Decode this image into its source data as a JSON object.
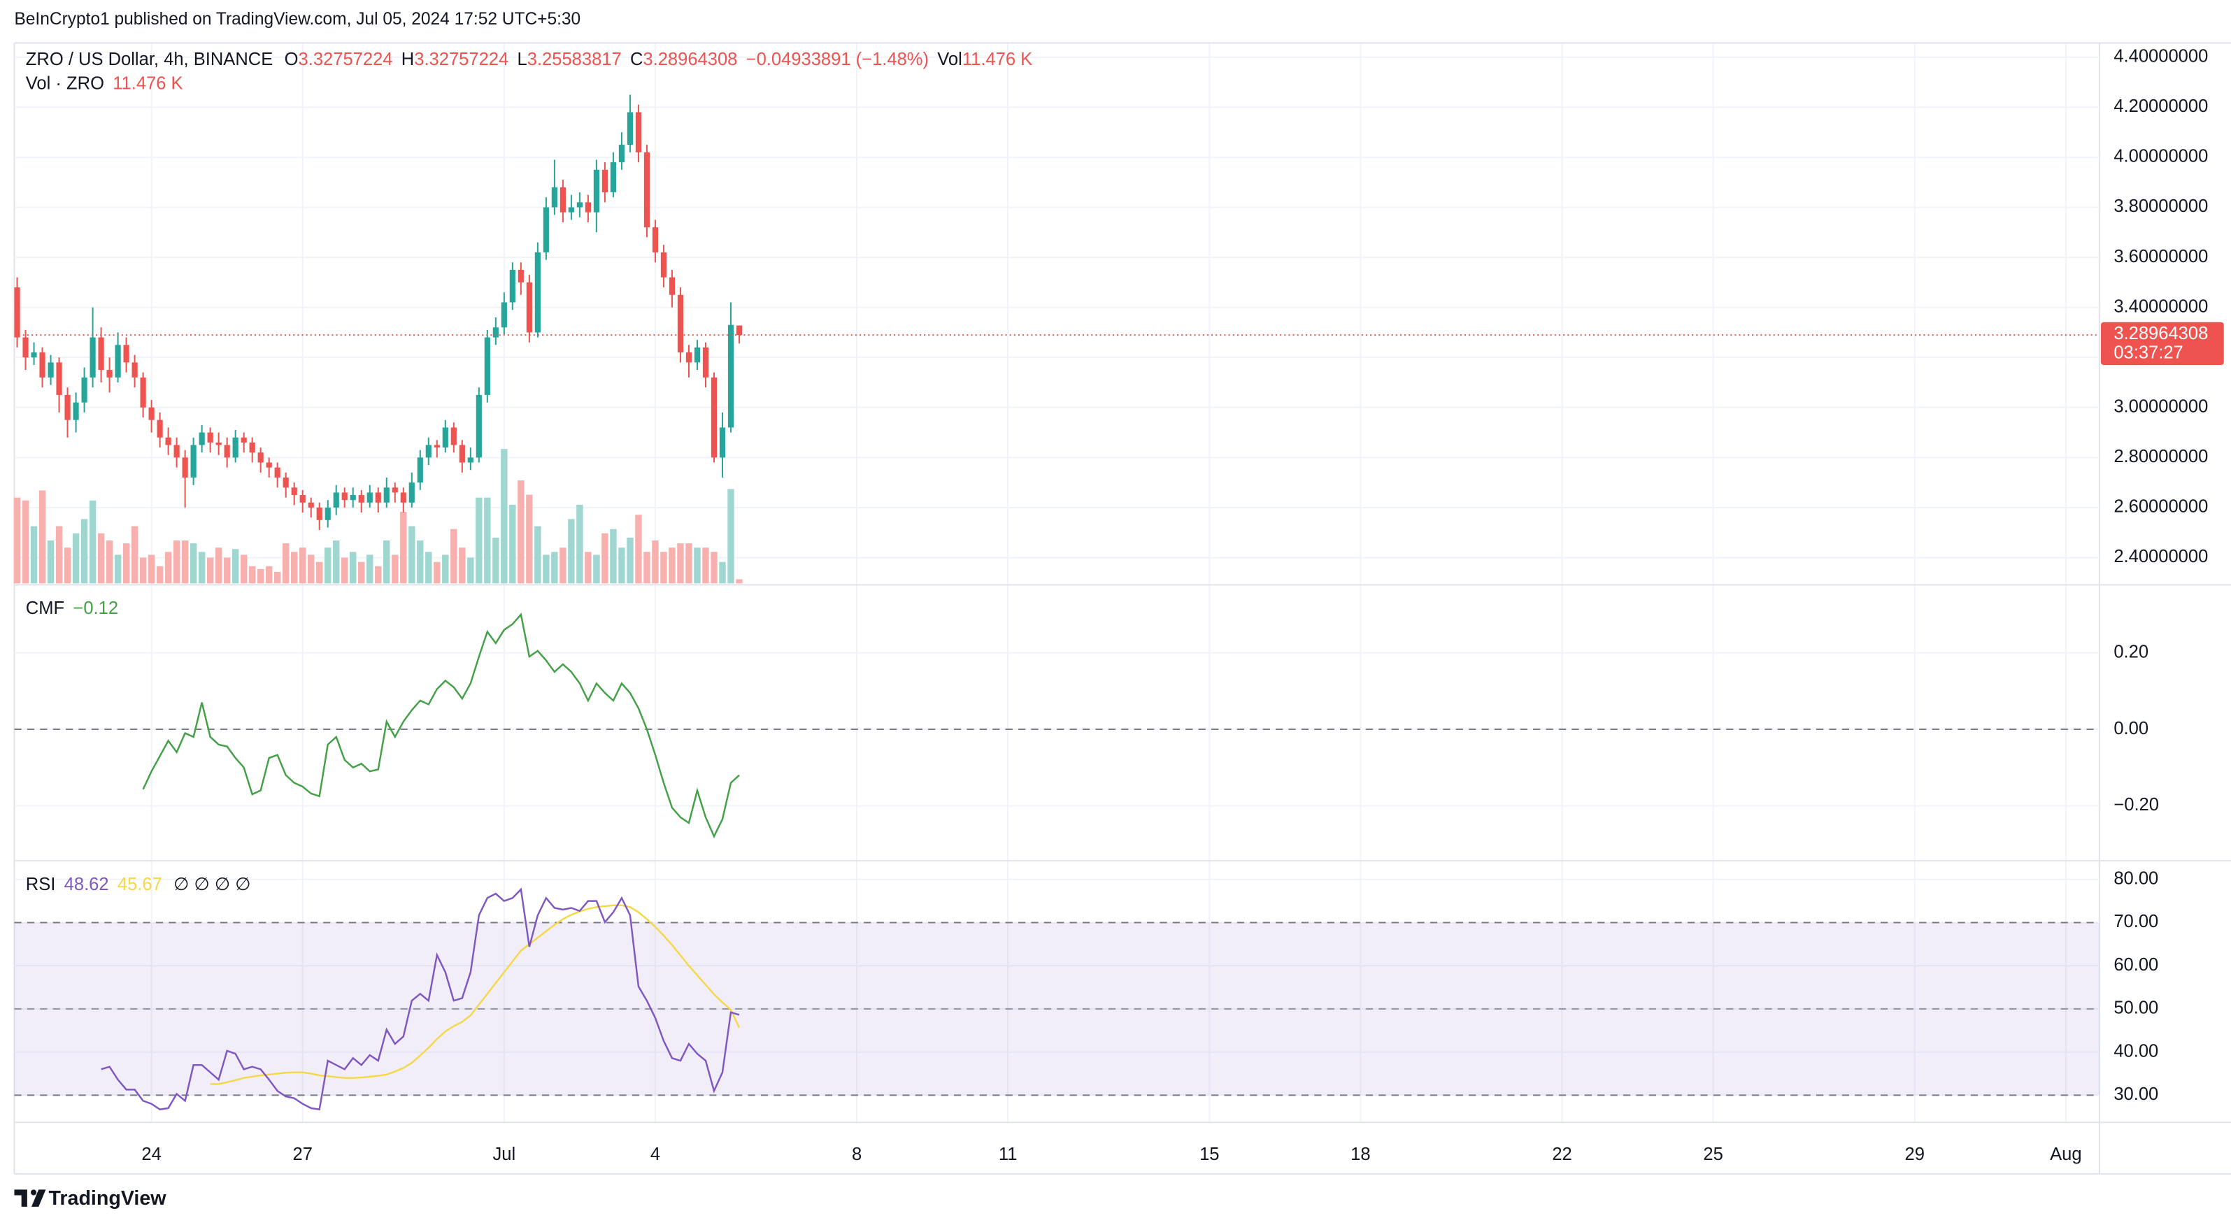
{
  "page": {
    "attribution": "BeInCrypto1 published on TradingView.com, Jul 05, 2024 17:52 UTC+5:30",
    "footer": "TradingView"
  },
  "chart_data": {
    "type": "candlestick",
    "title": "ZRO / US Dollar, 4h, BINANCE",
    "ohlc_labels": [
      "O",
      "H",
      "L",
      "C"
    ],
    "change_label": "−0.04933891 (−1.48%)",
    "volume_title": "Vol",
    "volume_pane_title": "Vol · ZRO",
    "volume_label": "11.476 K",
    "countdown": "03:37:27",
    "up_color": "#26a69a",
    "down_color": "#ef5350",
    "volume_up_color": "#9fd6d0",
    "volume_down_color": "#f7b0ad",
    "grid": true,
    "xlim": [
      -0.34,
      248.0
    ],
    "xticks": [
      {
        "value": 16,
        "label": "24"
      },
      {
        "value": 34,
        "label": "27"
      },
      {
        "value": 58,
        "label": "Jul"
      },
      {
        "value": 76,
        "label": "4"
      },
      {
        "value": 100,
        "label": "8"
      },
      {
        "value": 118,
        "label": "11"
      },
      {
        "value": 142,
        "label": "15"
      },
      {
        "value": 160,
        "label": "18"
      },
      {
        "value": 184,
        "label": "22"
      },
      {
        "value": 202,
        "label": "25"
      },
      {
        "value": 226,
        "label": "29"
      },
      {
        "value": 244,
        "label": "Aug"
      }
    ],
    "ylim": [
      2.297,
      4.457
    ],
    "yticks": [
      {
        "value": 2.4,
        "label": "2.40000000"
      },
      {
        "value": 2.6,
        "label": "2.60000000"
      },
      {
        "value": 2.8,
        "label": "2.80000000"
      },
      {
        "value": 3.0,
        "label": "3.00000000"
      },
      {
        "value": 3.2,
        "label": "3.20000000"
      },
      {
        "value": 3.4,
        "label": "3.40000000"
      },
      {
        "value": 3.6,
        "label": "3.60000000"
      },
      {
        "value": 3.8,
        "label": "3.80000000"
      },
      {
        "value": 4.0,
        "label": "4.00000000"
      },
      {
        "value": 4.2,
        "label": "4.20000000"
      },
      {
        "value": 4.4,
        "label": "4.40000000"
      }
    ],
    "candles": [
      [
        3.48,
        3.52,
        3.24,
        3.28
      ],
      [
        3.28,
        3.31,
        3.15,
        3.2
      ],
      [
        3.2,
        3.26,
        3.17,
        3.22
      ],
      [
        3.22,
        3.24,
        3.08,
        3.12
      ],
      [
        3.12,
        3.21,
        3.09,
        3.18
      ],
      [
        3.18,
        3.2,
        2.98,
        3.05
      ],
      [
        3.05,
        3.08,
        2.88,
        2.95
      ],
      [
        2.95,
        3.06,
        2.9,
        3.02
      ],
      [
        3.02,
        3.16,
        2.98,
        3.12
      ],
      [
        3.12,
        3.4,
        3.08,
        3.28
      ],
      [
        3.28,
        3.32,
        3.1,
        3.15
      ],
      [
        3.15,
        3.2,
        3.06,
        3.12
      ],
      [
        3.12,
        3.3,
        3.1,
        3.25
      ],
      [
        3.25,
        3.28,
        3.14,
        3.18
      ],
      [
        3.18,
        3.21,
        3.08,
        3.12
      ],
      [
        3.12,
        3.14,
        2.96,
        3.0
      ],
      [
        3.0,
        3.03,
        2.9,
        2.95
      ],
      [
        2.95,
        2.98,
        2.84,
        2.88
      ],
      [
        2.88,
        2.92,
        2.81,
        2.85
      ],
      [
        2.85,
        2.88,
        2.76,
        2.8
      ],
      [
        2.8,
        2.83,
        2.6,
        2.72
      ],
      [
        2.72,
        2.88,
        2.69,
        2.85
      ],
      [
        2.85,
        2.93,
        2.82,
        2.9
      ],
      [
        2.9,
        2.92,
        2.82,
        2.86
      ],
      [
        2.86,
        2.9,
        2.81,
        2.85
      ],
      [
        2.85,
        2.88,
        2.76,
        2.8
      ],
      [
        2.8,
        2.91,
        2.78,
        2.88
      ],
      [
        2.88,
        2.9,
        2.82,
        2.86
      ],
      [
        2.86,
        2.88,
        2.78,
        2.82
      ],
      [
        2.82,
        2.84,
        2.74,
        2.78
      ],
      [
        2.78,
        2.8,
        2.72,
        2.76
      ],
      [
        2.76,
        2.78,
        2.68,
        2.72
      ],
      [
        2.72,
        2.74,
        2.64,
        2.68
      ],
      [
        2.68,
        2.7,
        2.61,
        2.65
      ],
      [
        2.65,
        2.67,
        2.58,
        2.62
      ],
      [
        2.62,
        2.64,
        2.56,
        2.6
      ],
      [
        2.6,
        2.62,
        2.51,
        2.55
      ],
      [
        2.55,
        2.63,
        2.52,
        2.6
      ],
      [
        2.6,
        2.69,
        2.57,
        2.66
      ],
      [
        2.66,
        2.68,
        2.6,
        2.63
      ],
      [
        2.63,
        2.68,
        2.6,
        2.65
      ],
      [
        2.65,
        2.67,
        2.58,
        2.62
      ],
      [
        2.62,
        2.69,
        2.6,
        2.66
      ],
      [
        2.66,
        2.68,
        2.58,
        2.62
      ],
      [
        2.62,
        2.72,
        2.6,
        2.68
      ],
      [
        2.68,
        2.7,
        2.62,
        2.66
      ],
      [
        2.66,
        2.68,
        2.58,
        2.62
      ],
      [
        2.62,
        2.74,
        2.6,
        2.7
      ],
      [
        2.7,
        2.83,
        2.67,
        2.8
      ],
      [
        2.8,
        2.88,
        2.77,
        2.85
      ],
      [
        2.85,
        2.87,
        2.8,
        2.84
      ],
      [
        2.84,
        2.95,
        2.82,
        2.92
      ],
      [
        2.92,
        2.94,
        2.82,
        2.85
      ],
      [
        2.85,
        2.87,
        2.74,
        2.78
      ],
      [
        2.78,
        2.84,
        2.75,
        2.8
      ],
      [
        2.8,
        3.08,
        2.78,
        3.05
      ],
      [
        3.05,
        3.31,
        3.02,
        3.28
      ],
      [
        3.28,
        3.36,
        3.25,
        3.32
      ],
      [
        3.32,
        3.46,
        3.29,
        3.42
      ],
      [
        3.42,
        3.58,
        3.39,
        3.55
      ],
      [
        3.55,
        3.58,
        3.45,
        3.5
      ],
      [
        3.5,
        3.53,
        3.26,
        3.3
      ],
      [
        3.3,
        3.66,
        3.28,
        3.62
      ],
      [
        3.62,
        3.84,
        3.59,
        3.8
      ],
      [
        3.8,
        3.99,
        3.77,
        3.88
      ],
      [
        3.88,
        3.91,
        3.74,
        3.78
      ],
      [
        3.78,
        3.85,
        3.75,
        3.8
      ],
      [
        3.8,
        3.86,
        3.76,
        3.82
      ],
      [
        3.82,
        3.85,
        3.74,
        3.78
      ],
      [
        3.78,
        3.99,
        3.7,
        3.95
      ],
      [
        3.95,
        3.98,
        3.82,
        3.86
      ],
      [
        3.86,
        4.02,
        3.84,
        3.98
      ],
      [
        3.98,
        4.1,
        3.95,
        4.05
      ],
      [
        4.05,
        4.25,
        4.02,
        4.18
      ],
      [
        4.18,
        4.21,
        3.98,
        4.02
      ],
      [
        4.02,
        4.05,
        3.68,
        3.72
      ],
      [
        3.72,
        3.75,
        3.58,
        3.62
      ],
      [
        3.62,
        3.65,
        3.48,
        3.52
      ],
      [
        3.52,
        3.55,
        3.4,
        3.45
      ],
      [
        3.45,
        3.48,
        3.18,
        3.22
      ],
      [
        3.22,
        3.25,
        3.12,
        3.18
      ],
      [
        3.18,
        3.27,
        3.15,
        3.24
      ],
      [
        3.24,
        3.26,
        3.08,
        3.12
      ],
      [
        3.12,
        3.14,
        2.78,
        2.8
      ],
      [
        2.8,
        2.98,
        2.72,
        2.92
      ],
      [
        2.92,
        3.42,
        2.9,
        3.33
      ],
      [
        3.32757224,
        3.32757224,
        3.25583817,
        3.28964308
      ]
    ],
    "volumes": [
      240,
      232,
      160,
      260,
      120,
      160,
      100,
      140,
      180,
      232,
      140,
      120,
      80,
      112,
      160,
      72,
      80,
      48,
      88,
      120,
      120,
      112,
      88,
      72,
      100,
      72,
      96,
      80,
      48,
      40,
      48,
      32,
      112,
      88,
      100,
      80,
      60,
      100,
      120,
      72,
      88,
      60,
      80,
      48,
      120,
      80,
      200,
      160,
      120,
      88,
      60,
      80,
      152,
      100,
      72,
      240,
      240,
      128,
      376,
      220,
      288,
      248,
      160,
      80,
      88,
      100,
      180,
      220,
      88,
      80,
      140,
      152,
      100,
      128,
      192,
      88,
      120,
      88,
      100,
      112,
      112,
      100,
      100,
      88,
      60,
      264,
      11.476
    ],
    "indicators": [
      {
        "type": "line",
        "name": "CMF",
        "value_label": "−0.12",
        "color": "#43a047",
        "ylim": [
          -0.34,
          0.374
        ],
        "yticks": [
          {
            "value": -0.2,
            "label": "−0.20"
          },
          {
            "value": 0,
            "label": "0.00"
          },
          {
            "value": 0.2,
            "label": "0.20"
          }
        ],
        "zero_line": 0,
        "values": [
          null,
          null,
          null,
          null,
          null,
          null,
          null,
          null,
          null,
          null,
          null,
          null,
          null,
          null,
          null,
          -0.157,
          -0.11,
          -0.07,
          -0.03,
          -0.06,
          -0.01,
          -0.02,
          0.07,
          -0.02,
          -0.04,
          -0.045,
          -0.075,
          -0.1,
          -0.17,
          -0.16,
          -0.075,
          -0.067,
          -0.12,
          -0.14,
          -0.15,
          -0.168,
          -0.175,
          -0.04,
          -0.02,
          -0.08,
          -0.1,
          -0.09,
          -0.11,
          -0.105,
          0.02,
          -0.02,
          0.02,
          0.05,
          0.075,
          0.065,
          0.105,
          0.127,
          0.11,
          0.08,
          0.12,
          0.19,
          0.255,
          0.225,
          0.26,
          0.275,
          0.3,
          0.19,
          0.205,
          0.18,
          0.15,
          0.17,
          0.15,
          0.12,
          0.075,
          0.12,
          0.095,
          0.075,
          0.12,
          0.095,
          0.055,
          0.0,
          -0.067,
          -0.14,
          -0.205,
          -0.23,
          -0.245,
          -0.16,
          -0.23,
          -0.28,
          -0.235,
          -0.14,
          -0.12
        ]
      },
      {
        "type": "line",
        "name": "RSI",
        "color": "#7e57c2",
        "ma_color": "#f5d84a",
        "extras": "∅ ∅ ∅ ∅",
        "ylim": [
          23.7,
          84
        ],
        "yticks": [
          {
            "value": 30,
            "label": "30.00"
          },
          {
            "value": 40,
            "label": "40.00"
          },
          {
            "value": 50,
            "label": "50.00"
          },
          {
            "value": 60,
            "label": "60.00"
          },
          {
            "value": 70,
            "label": "70.00"
          },
          {
            "value": 80,
            "label": "80.00"
          }
        ],
        "band": [
          30,
          70
        ],
        "middle": 50,
        "band_color": "#7e57c2",
        "values": [
          null,
          null,
          null,
          null,
          null,
          null,
          null,
          null,
          null,
          null,
          36.0,
          36.6,
          33.6,
          31.3,
          31.3,
          28.7,
          28.0,
          26.7,
          27.0,
          30.3,
          28.7,
          37.0,
          37.0,
          35.3,
          33.6,
          40.3,
          39.6,
          36.0,
          36.6,
          36.0,
          33.6,
          31.0,
          29.7,
          29.3,
          28.0,
          27.0,
          26.7,
          38.0,
          37.0,
          36.0,
          38.6,
          37.0,
          39.3,
          38.0,
          45.2,
          41.9,
          43.6,
          51.9,
          53.5,
          51.9,
          62.5,
          58.5,
          51.9,
          52.5,
          58.5,
          71.7,
          75.7,
          76.7,
          75.0,
          75.7,
          77.7,
          64.4,
          71.7,
          75.7,
          73.4,
          73.0,
          73.4,
          72.7,
          75.0,
          75.0,
          70.1,
          72.4,
          75.7,
          71.7,
          55.2,
          51.9,
          47.9,
          42.6,
          38.6,
          38.0,
          41.9,
          39.6,
          38.0,
          31.0,
          35.3,
          49.2,
          48.62
        ],
        "ma_values": [
          null,
          null,
          null,
          null,
          null,
          null,
          null,
          null,
          null,
          null,
          null,
          null,
          null,
          null,
          null,
          null,
          null,
          null,
          null,
          null,
          null,
          null,
          null,
          32.6,
          32.6,
          33.0,
          33.5,
          34.0,
          34.3,
          34.6,
          34.8,
          35.0,
          35.2,
          35.3,
          35.3,
          35.0,
          34.6,
          34.4,
          34.2,
          34.0,
          34.0,
          34.1,
          34.3,
          34.5,
          34.8,
          35.5,
          36.3,
          37.5,
          39.2,
          41.0,
          43.0,
          44.8,
          46.0,
          47.0,
          48.5,
          51.0,
          53.5,
          56.0,
          58.5,
          61.0,
          63.5,
          65.0,
          66.5,
          68.0,
          69.5,
          70.8,
          71.8,
          72.6,
          73.2,
          73.6,
          73.8,
          74.0,
          74.0,
          73.6,
          72.4,
          70.8,
          69.0,
          67.0,
          64.8,
          62.4,
          60.0,
          57.8,
          55.6,
          53.4,
          51.5,
          49.8,
          45.67
        ]
      }
    ]
  }
}
